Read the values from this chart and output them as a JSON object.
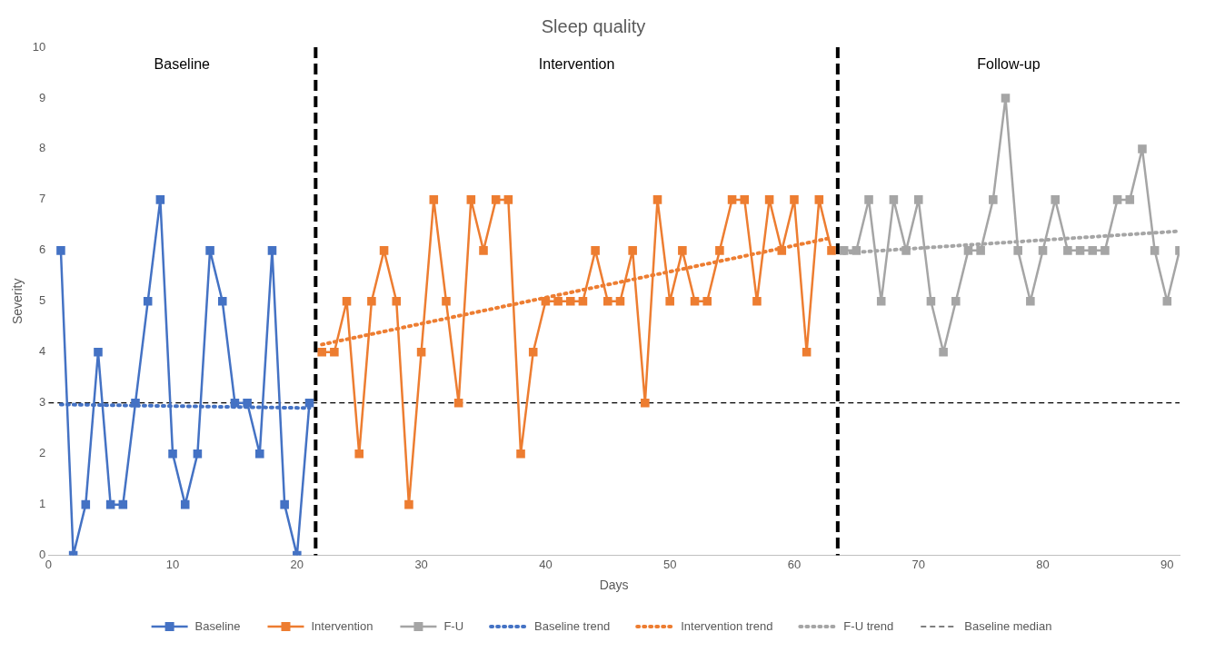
{
  "chart_data": {
    "type": "line",
    "title": "Sleep quality",
    "xlabel": "Days",
    "ylabel": "Severity",
    "xlim": [
      0,
      91
    ],
    "xticks": [
      0,
      10,
      20,
      30,
      40,
      50,
      60,
      70,
      80,
      90
    ],
    "ylim": [
      0,
      10
    ],
    "yticks": [
      0,
      1,
      2,
      3,
      4,
      5,
      6,
      7,
      8,
      9,
      10
    ],
    "grid": false,
    "legend": "bottom",
    "annotations": [
      "Baseline",
      "Intervention",
      "Follow-up"
    ],
    "ref_lines": [
      {
        "axis": "x",
        "value": 21.5,
        "color": "#000000",
        "line_style": "dashed"
      },
      {
        "axis": "x",
        "value": 63.5,
        "color": "#000000",
        "line_style": "dashed"
      }
    ],
    "series": [
      {
        "name": "Baseline",
        "color": "#4472c4",
        "marker": "square",
        "line_style": "solid",
        "x": [
          1,
          2,
          3,
          4,
          5,
          6,
          7,
          8,
          9,
          10,
          11,
          12,
          13,
          14,
          15,
          16,
          17,
          18,
          19,
          20,
          21
        ],
        "values": [
          6,
          0,
          1,
          4,
          1,
          1,
          3,
          5,
          7,
          2,
          1,
          2,
          6,
          5,
          3,
          3,
          2,
          6,
          1,
          0,
          3
        ]
      },
      {
        "name": "Intervention",
        "color": "#ed7d31",
        "marker": "square",
        "line_style": "solid",
        "x": [
          22,
          23,
          24,
          25,
          26,
          27,
          28,
          29,
          30,
          31,
          32,
          33,
          34,
          35,
          36,
          37,
          38,
          39,
          40,
          41,
          42,
          43,
          44,
          45,
          46,
          47,
          48,
          49,
          50,
          51,
          52,
          53,
          54,
          55,
          56,
          57,
          58,
          59,
          60,
          61,
          62,
          63
        ],
        "values": [
          4,
          4,
          5,
          2,
          5,
          6,
          5,
          1,
          4,
          7,
          5,
          3,
          7,
          6,
          7,
          7,
          2,
          4,
          5,
          5,
          5,
          5,
          6,
          5,
          5,
          6,
          3,
          7,
          5,
          6,
          5,
          5,
          6,
          7,
          7,
          5,
          7,
          6,
          7,
          4,
          7,
          6
        ]
      },
      {
        "name": "F-U",
        "color": "#a5a5a5",
        "marker": "square",
        "line_style": "solid",
        "x": [
          64,
          65,
          66,
          67,
          68,
          69,
          70,
          71,
          72,
          73,
          74,
          75,
          76,
          77,
          78,
          79,
          80,
          81,
          82,
          83,
          84,
          85,
          86,
          87,
          88,
          89,
          90,
          91
        ],
        "values": [
          6,
          6,
          7,
          5,
          7,
          6,
          7,
          5,
          4,
          5,
          6,
          6,
          7,
          9,
          6,
          5,
          6,
          7,
          6,
          6,
          6,
          6,
          7,
          7,
          8,
          6,
          5,
          6
        ]
      },
      {
        "name": "Baseline trend",
        "color": "#4472c4",
        "marker": "none",
        "line_style": "dotted",
        "x": [
          1,
          21
        ],
        "values": [
          2.97,
          2.9
        ]
      },
      {
        "name": "Intervention trend",
        "color": "#ed7d31",
        "marker": "none",
        "line_style": "dotted",
        "x": [
          22,
          63
        ],
        "values": [
          4.15,
          6.25
        ]
      },
      {
        "name": "F-U trend",
        "color": "#a5a5a5",
        "marker": "none",
        "line_style": "dotted",
        "x": [
          64,
          91
        ],
        "values": [
          5.95,
          6.38
        ]
      },
      {
        "name": "Baseline median",
        "color": "#000000",
        "marker": "none",
        "line_style": "dashed",
        "x": [
          0,
          91
        ],
        "values": [
          3,
          3
        ]
      }
    ]
  }
}
